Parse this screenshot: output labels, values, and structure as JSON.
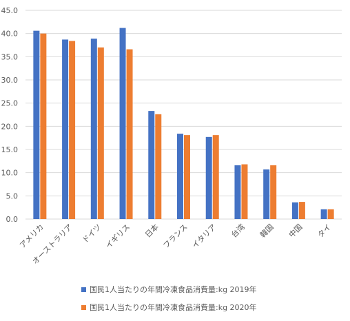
{
  "chart_data": {
    "type": "bar",
    "title": "",
    "xlabel": "",
    "ylabel": "",
    "categories": [
      "アメリカ",
      "オーストラリア",
      "ドイツ",
      "イギリス",
      "日本",
      "フランス",
      "イタリア",
      "台湾",
      "韓国",
      "中国",
      "タイ"
    ],
    "series": [
      {
        "name": "国民1人当たりの年間冷凍食品消費量:kg 2019年",
        "color": "#4472c4",
        "values": [
          40.6,
          38.7,
          38.9,
          41.2,
          23.3,
          18.4,
          17.7,
          11.6,
          10.7,
          3.6,
          2.1
        ]
      },
      {
        "name": "国民1人当たりの年間冷凍食品消費量:kg 2020年",
        "color": "#ed7d31",
        "values": [
          40.0,
          38.4,
          37.0,
          36.6,
          22.6,
          18.1,
          18.1,
          11.8,
          11.6,
          3.7,
          2.1
        ]
      }
    ],
    "ylim": [
      0,
      45
    ],
    "yticks": [
      "0.0",
      "5.0",
      "10.0",
      "15.0",
      "20.0",
      "25.0",
      "30.0",
      "35.0",
      "40.0",
      "45.0"
    ],
    "grid": true,
    "legend_position": "bottom"
  }
}
